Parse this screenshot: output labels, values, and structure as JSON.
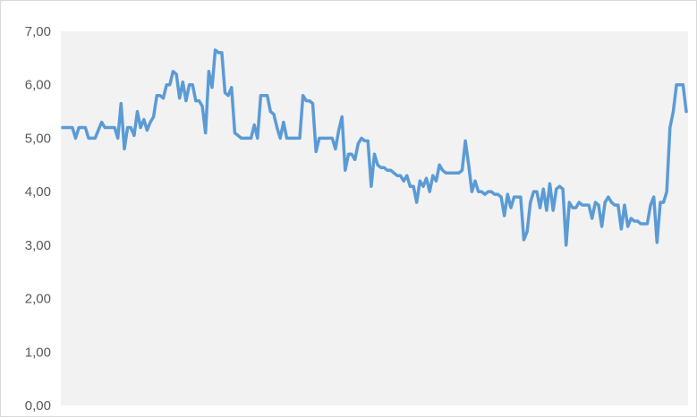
{
  "chart_data": {
    "type": "line",
    "title": "",
    "xlabel": "",
    "ylabel": "",
    "ylim": [
      0,
      7
    ],
    "y_ticks": [
      "0,00",
      "1,00",
      "2,00",
      "3,00",
      "4,00",
      "5,00",
      "6,00",
      "7,00"
    ],
    "grid": false,
    "plot_background": "#f2f2f2",
    "series": [
      {
        "color": "#5b9bd5",
        "values": [
          5.2,
          5.2,
          5.2,
          5.2,
          5.0,
          5.2,
          5.2,
          5.2,
          5.0,
          5.0,
          5.0,
          5.15,
          5.3,
          5.2,
          5.2,
          5.2,
          5.2,
          5.0,
          5.65,
          4.8,
          5.2,
          5.2,
          5.05,
          5.5,
          5.2,
          5.35,
          5.15,
          5.3,
          5.4,
          5.8,
          5.8,
          5.75,
          6.0,
          6.0,
          6.25,
          6.2,
          5.75,
          6.05,
          5.7,
          6.0,
          6.0,
          5.7,
          5.7,
          5.6,
          5.1,
          6.25,
          5.95,
          6.65,
          6.6,
          6.6,
          5.85,
          5.8,
          5.95,
          5.1,
          5.05,
          5.0,
          5.0,
          5.0,
          5.0,
          5.25,
          5.0,
          5.8,
          5.8,
          5.8,
          5.5,
          5.45,
          5.2,
          5.0,
          5.3,
          5.0,
          5.0,
          5.0,
          5.0,
          5.0,
          5.8,
          5.7,
          5.7,
          5.65,
          4.75,
          5.0,
          5.0,
          5.0,
          5.0,
          5.0,
          4.8,
          5.15,
          5.4,
          4.4,
          4.7,
          4.7,
          4.6,
          4.9,
          5.0,
          4.95,
          4.95,
          4.1,
          4.7,
          4.5,
          4.45,
          4.45,
          4.4,
          4.4,
          4.35,
          4.3,
          4.3,
          4.2,
          4.3,
          4.1,
          4.1,
          3.8,
          4.2,
          4.1,
          4.25,
          4.0,
          4.3,
          4.2,
          4.5,
          4.4,
          4.35,
          4.35,
          4.35,
          4.35,
          4.35,
          4.4,
          4.95,
          4.5,
          4.0,
          4.2,
          4.0,
          4.0,
          3.95,
          4.0,
          4.0,
          3.95,
          3.95,
          3.9,
          3.55,
          3.95,
          3.7,
          3.9,
          3.9,
          3.9,
          3.1,
          3.25,
          3.8,
          4.0,
          4.0,
          3.7,
          4.05,
          3.65,
          4.15,
          3.65,
          4.05,
          4.1,
          4.05,
          3.0,
          3.8,
          3.7,
          3.7,
          3.8,
          3.75,
          3.75,
          3.75,
          3.5,
          3.8,
          3.75,
          3.35,
          3.8,
          3.9,
          3.8,
          3.75,
          3.75,
          3.3,
          3.75,
          3.35,
          3.5,
          3.45,
          3.45,
          3.4,
          3.4,
          3.4,
          3.75,
          3.9,
          3.05,
          3.8,
          3.8,
          4.0,
          5.2,
          5.5,
          6.0,
          6.0,
          6.0,
          5.5
        ]
      }
    ]
  }
}
